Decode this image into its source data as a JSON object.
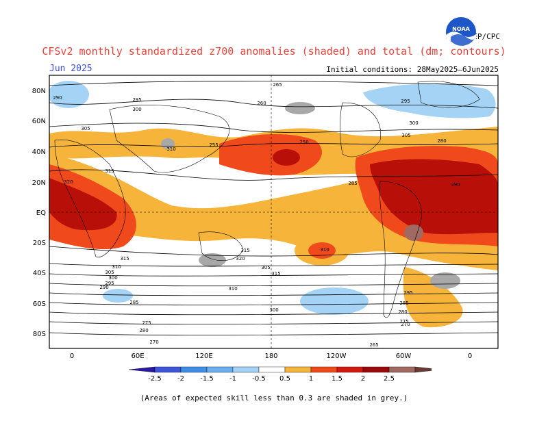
{
  "title": "CFSv2 monthly standardized z700 anomalies (shaded) and total (dm; contours)",
  "month": "Jun 2025",
  "initial_conditions": "Initial conditions: 28May2025–6Jun2025",
  "agency": "NWS/NCEP/CPC",
  "logo_text": "NOAA",
  "footnote": "(Areas of expected skill less than 0.3 are shaded in grey.)",
  "map": {
    "lat_labels": [
      "80N",
      "60N",
      "40N",
      "20N",
      "EQ",
      "20S",
      "40S",
      "60S",
      "80S"
    ],
    "lon_labels": [
      "0",
      "60E",
      "120E",
      "180",
      "120W",
      "60W",
      "0"
    ],
    "contour_labels": [
      "290",
      "295",
      "300",
      "305",
      "310",
      "315",
      "320",
      "315",
      "310",
      "305",
      "300",
      "295",
      "290",
      "285",
      "280",
      "275",
      "270",
      "265",
      "260",
      "255",
      "250",
      "280",
      "285",
      "290",
      "295",
      "300",
      "305",
      "310",
      "315",
      "320",
      "305",
      "315",
      "310",
      "300",
      "295",
      "285",
      "280",
      "275",
      "270",
      "265"
    ]
  },
  "legend": {
    "tick_labels": [
      "-2.5",
      "-2",
      "-1.5",
      "-1",
      "-0.5",
      "0.5",
      "1",
      "1.5",
      "2",
      "2.5"
    ],
    "colors": [
      "#2a1aa6",
      "#3d55d6",
      "#3f8ee8",
      "#6ab0f0",
      "#a4d3f5",
      "#ffffff",
      "#f6b53a",
      "#f04a1c",
      "#d21a10",
      "#9a0a0a",
      "#a06a62",
      "#6a3a36"
    ],
    "skill_grey": "#a8a8a8"
  }
}
